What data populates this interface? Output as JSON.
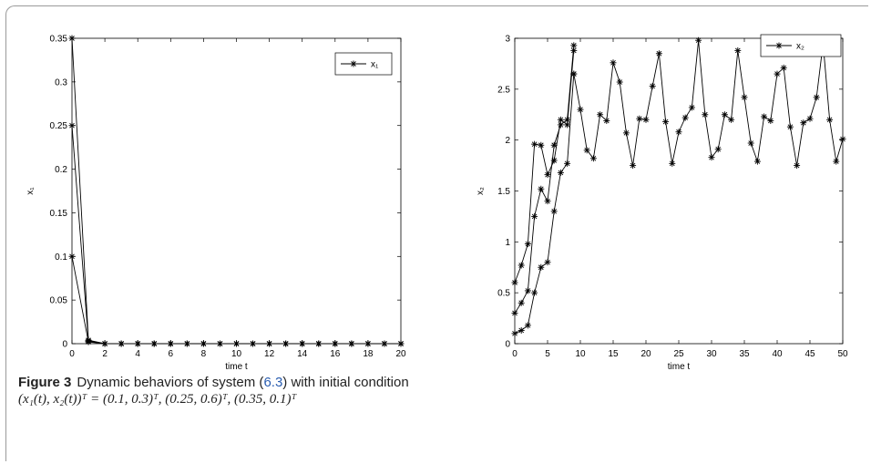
{
  "caption": {
    "label": "Figure 3",
    "text_before_ref": "Dynamic behaviors of system (",
    "ref": "6.3",
    "text_after_ref": ") with initial condition",
    "math_line": "(x₁(t), x₂(t))ᵀ = (0.1, 0.3)ᵀ, (0.25, 0.6)ᵀ, (0.35, 0.1)ᵀ"
  },
  "chart_data": [
    {
      "type": "line",
      "title": "",
      "xlabel": "time t",
      "ylabel": "x₁",
      "xlim": [
        0,
        20
      ],
      "ylim": [
        0,
        0.35
      ],
      "xticks": [
        0,
        2,
        4,
        6,
        8,
        10,
        12,
        14,
        16,
        18,
        20
      ],
      "yticks": [
        0,
        0.05,
        0.1,
        0.15,
        0.2,
        0.25,
        0.3,
        0.35
      ],
      "xtick_labels": [
        "0",
        "2",
        "4",
        "6",
        "8",
        "10",
        "12",
        "14",
        "16",
        "18",
        "20"
      ],
      "ytick_labels": [
        "0",
        "0.05",
        "0.1",
        "0.15",
        "0.2",
        "0.25",
        "0.3",
        "0.35"
      ],
      "legend": "top-right",
      "legend_label": "x₁",
      "marker": "asterisk",
      "grid": false,
      "series": [
        {
          "x": [
            0,
            1,
            2,
            3,
            4,
            5,
            6,
            7,
            8,
            9,
            10,
            11,
            12,
            13,
            14,
            15,
            16,
            17,
            18,
            19,
            20
          ],
          "values": [
            0.1,
            0.002,
            0,
            0,
            0,
            0,
            0,
            0,
            0,
            0,
            0,
            0,
            0,
            0,
            0,
            0,
            0,
            0,
            0,
            0,
            0
          ]
        },
        {
          "x": [
            0,
            1,
            2,
            3,
            4,
            5,
            6,
            7,
            8,
            9,
            10,
            11,
            12,
            13,
            14,
            15,
            16,
            17,
            18,
            19,
            20
          ],
          "values": [
            0.25,
            0.003,
            0,
            0,
            0,
            0,
            0,
            0,
            0,
            0,
            0,
            0,
            0,
            0,
            0,
            0,
            0,
            0,
            0,
            0,
            0
          ]
        },
        {
          "x": [
            0,
            1,
            2,
            3,
            4,
            5,
            6,
            7,
            8,
            9,
            10,
            11,
            12,
            13,
            14,
            15,
            16,
            17,
            18,
            19,
            20
          ],
          "values": [
            0.35,
            0.004,
            0,
            0,
            0,
            0,
            0,
            0,
            0,
            0,
            0,
            0,
            0,
            0,
            0,
            0,
            0,
            0,
            0,
            0,
            0
          ]
        }
      ]
    },
    {
      "type": "line",
      "title": "",
      "xlabel": "time t",
      "ylabel": "x₂",
      "xlim": [
        0,
        50
      ],
      "ylim": [
        0,
        3
      ],
      "xticks": [
        0,
        5,
        10,
        15,
        20,
        25,
        30,
        35,
        40,
        45,
        50
      ],
      "yticks": [
        0,
        0.5,
        1,
        1.5,
        2,
        2.5,
        3
      ],
      "xtick_labels": [
        "0",
        "5",
        "10",
        "15",
        "20",
        "25",
        "30",
        "35",
        "40",
        "45",
        "50"
      ],
      "ytick_labels": [
        "0",
        "0.5",
        "1",
        "1.5",
        "2",
        "2.5",
        "3"
      ],
      "legend": "top-right",
      "legend_label": "x₂",
      "marker": "asterisk",
      "grid": false,
      "series": [
        {
          "x": [
            0,
            1,
            2,
            3,
            4,
            5,
            6,
            7,
            8,
            9
          ],
          "values": [
            0.1,
            0.13,
            0.18,
            0.5,
            0.75,
            0.8,
            1.3,
            1.68,
            1.77,
            2.65
          ]
        },
        {
          "x": [
            0,
            1,
            2,
            3,
            4,
            5,
            6,
            7,
            8,
            9
          ],
          "values": [
            0.3,
            0.4,
            0.52,
            1.25,
            1.52,
            1.4,
            1.95,
            2.15,
            2.2,
            2.93
          ]
        },
        {
          "x": [
            0,
            1,
            2,
            3,
            4,
            5,
            6,
            7,
            8,
            9
          ],
          "values": [
            0.6,
            0.77,
            0.98,
            1.96,
            1.95,
            1.66,
            1.8,
            2.2,
            2.15,
            2.88
          ]
        },
        {
          "x": [
            9,
            10,
            11,
            12,
            13,
            14,
            15,
            16,
            17,
            18,
            19,
            20,
            21,
            22,
            23,
            24,
            25,
            26,
            27,
            28,
            29,
            30,
            31,
            32,
            33,
            34,
            35,
            36,
            37,
            38,
            39,
            40,
            41,
            42,
            43,
            44,
            45,
            46,
            47,
            48,
            49,
            50
          ],
          "values": [
            2.65,
            2.3,
            1.9,
            1.82,
            2.25,
            2.19,
            2.76,
            2.57,
            2.07,
            1.75,
            2.21,
            2.2,
            2.53,
            2.85,
            2.18,
            1.77,
            2.08,
            2.22,
            2.32,
            2.98,
            2.25,
            1.83,
            1.91,
            2.25,
            2.2,
            2.88,
            2.42,
            1.97,
            1.79,
            2.23,
            2.19,
            2.65,
            2.71,
            2.13,
            1.75,
            2.17,
            2.21,
            2.42,
            2.95,
            2.2,
            1.79,
            2.01
          ]
        }
      ]
    }
  ]
}
